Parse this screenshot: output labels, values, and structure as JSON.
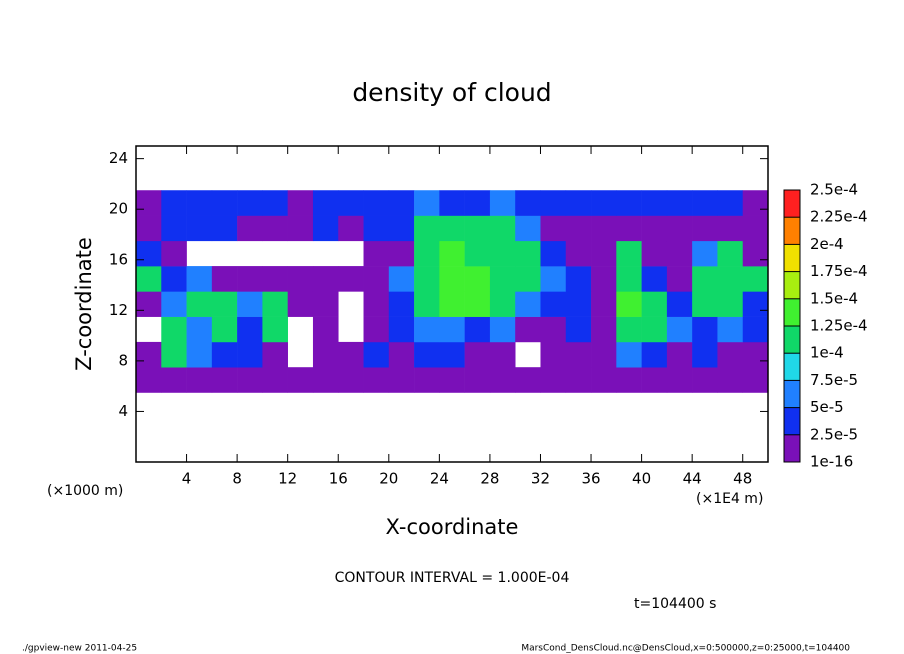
{
  "chart_data": {
    "type": "heatmap",
    "title": "density of cloud",
    "x_label": "X-coordinate",
    "y_label": "Z-coordinate",
    "x_unit": "(×1E4 m)",
    "y_unit": "(×1000 m)",
    "contour_note": "CONTOUR INTERVAL = 1.000E-04",
    "time_note": "t=104400 s",
    "footer_left": "./gpview-new   2011-04-25",
    "footer_right": "MarsCond_DensCloud.nc@DensCloud,x=0:500000,z=0:25000,t=104400",
    "xlim": [
      0,
      50
    ],
    "ylim": [
      0,
      25
    ],
    "xticks": [
      4,
      8,
      12,
      16,
      20,
      24,
      28,
      32,
      36,
      40,
      44,
      48
    ],
    "yticks": [
      4,
      8,
      12,
      16,
      20,
      24
    ],
    "x": [
      1,
      3,
      5,
      7,
      9,
      11,
      13,
      15,
      17,
      19,
      21,
      23,
      25,
      27,
      29,
      31,
      33,
      35,
      37,
      39,
      41,
      43,
      45,
      47,
      49
    ],
    "y": [
      6.5,
      8.5,
      10.5,
      12.5,
      14.5,
      16.5,
      18.5,
      20.5
    ],
    "values": [
      [
        1e-05,
        1e-05,
        1e-05,
        1e-05,
        1e-05,
        1e-05,
        1e-05,
        1e-05,
        1e-05,
        1e-05,
        1e-05,
        1e-05,
        1e-05,
        1e-05,
        1e-05,
        1e-05,
        1e-05,
        1e-05,
        1e-05,
        1e-05,
        1e-05,
        1e-05,
        1e-05,
        1e-05,
        1e-05
      ],
      [
        1e-05,
        0.00011,
        6e-05,
        3e-05,
        3e-05,
        1e-05,
        null,
        1e-05,
        1e-05,
        3e-05,
        1e-05,
        3e-05,
        3e-05,
        1e-05,
        1e-05,
        null,
        1e-05,
        1e-05,
        1e-05,
        6e-05,
        3e-05,
        1e-05,
        3e-05,
        1e-05,
        1e-05
      ],
      [
        null,
        0.00012,
        6e-05,
        0.00011,
        3e-05,
        0.00011,
        null,
        1e-05,
        null,
        1e-05,
        3e-05,
        6e-05,
        6e-05,
        3e-05,
        6e-05,
        1e-05,
        1e-05,
        3e-05,
        1e-05,
        0.00012,
        0.00011,
        6e-05,
        3e-05,
        6e-05,
        3e-05
      ],
      [
        1e-05,
        6e-05,
        0.00011,
        0.00011,
        6e-05,
        0.00011,
        1e-05,
        1e-05,
        null,
        1e-05,
        3e-05,
        0.00012,
        0.00014,
        0.00014,
        0.00012,
        6e-05,
        3e-05,
        3e-05,
        1e-05,
        0.00014,
        0.00012,
        3e-05,
        0.00011,
        0.00011,
        3e-05
      ],
      [
        0.00011,
        3e-05,
        6e-05,
        1e-05,
        1e-05,
        1e-05,
        1e-05,
        1e-05,
        1e-05,
        1e-05,
        6e-05,
        0.00012,
        0.00014,
        0.00014,
        0.00012,
        0.00011,
        6e-05,
        3e-05,
        1e-05,
        0.00012,
        3e-05,
        1e-05,
        0.00011,
        0.00012,
        0.00011
      ],
      [
        3e-05,
        1e-05,
        null,
        null,
        null,
        null,
        null,
        null,
        null,
        1e-05,
        1e-05,
        0.00011,
        0.00014,
        0.00012,
        0.00011,
        0.00011,
        3e-05,
        1e-05,
        1e-05,
        0.00011,
        1e-05,
        1e-05,
        6e-05,
        0.00011,
        1e-05
      ],
      [
        1e-05,
        3e-05,
        3e-05,
        3e-05,
        1e-05,
        1e-05,
        1e-05,
        3e-05,
        1e-05,
        3e-05,
        3e-05,
        0.00011,
        0.00012,
        0.00011,
        0.00011,
        6e-05,
        1e-05,
        1e-05,
        1e-05,
        1e-05,
        1e-05,
        1e-05,
        1e-05,
        1e-05,
        1e-05
      ],
      [
        1e-05,
        3e-05,
        3e-05,
        3e-05,
        3e-05,
        3e-05,
        1e-05,
        3e-05,
        3e-05,
        3e-05,
        3e-05,
        6e-05,
        3e-05,
        3e-05,
        6e-05,
        3e-05,
        3e-05,
        3e-05,
        3e-05,
        3e-05,
        3e-05,
        3e-05,
        3e-05,
        3e-05,
        1e-05
      ]
    ],
    "colorbar_ticks": [
      1e-16,
      {
        "value": 2.5e-05,
        "label": "2.5e-5"
      },
      {
        "value": 5e-05,
        "label": "5e-5"
      },
      {
        "value": 7.5e-05,
        "label": "7.5e-5"
      },
      {
        "value": 0.0001,
        "label": "1e-4"
      },
      {
        "value": 0.000125,
        "label": "1.25e-4"
      },
      {
        "value": 0.00015,
        "label": "1.5e-4"
      },
      {
        "value": 0.000175,
        "label": "1.75e-4"
      },
      {
        "value": 0.0002,
        "label": "2e-4"
      },
      {
        "value": 0.000225,
        "label": "2.25e-4"
      },
      {
        "value": 0.00025,
        "label": "2.5e-4"
      }
    ],
    "colors": [
      "#7a10b8",
      "#1030f0",
      "#2080ff",
      "#20d8e8",
      "#10d868",
      "#40f030",
      "#a8ee10",
      "#f0e000",
      "#ff8000",
      "#ff2020"
    ]
  }
}
